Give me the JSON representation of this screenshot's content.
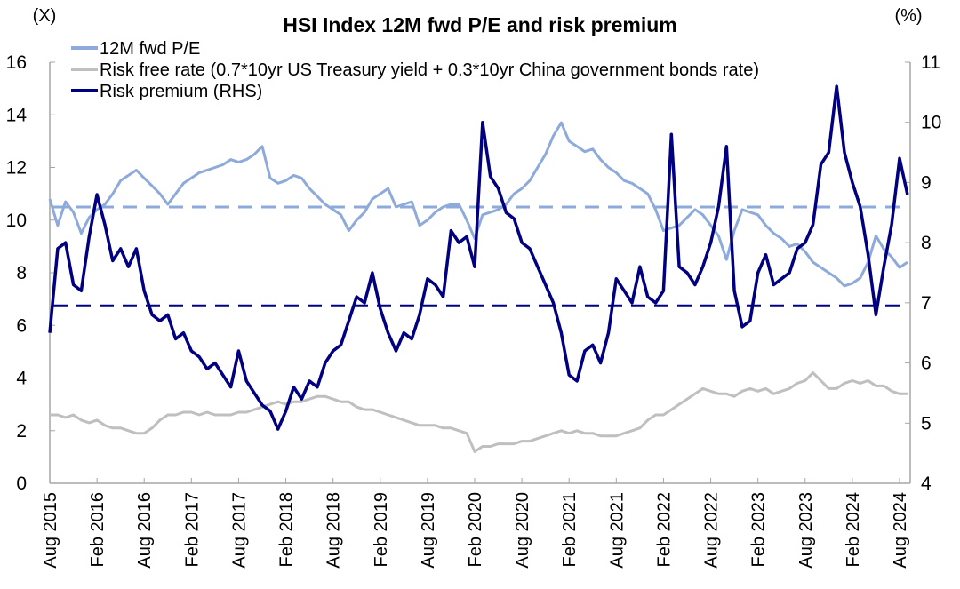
{
  "chart_data": {
    "type": "line",
    "title": "HSI Index 12M fwd P/E and risk premium",
    "left_axis": {
      "unit_label": "(X)",
      "ylim": [
        0,
        16
      ],
      "ticks": [
        0,
        2,
        4,
        6,
        8,
        10,
        12,
        14,
        16
      ]
    },
    "right_axis": {
      "unit_label": "(%)",
      "ylim": [
        4,
        11
      ],
      "ticks": [
        4,
        5,
        6,
        7,
        8,
        9,
        10,
        11
      ]
    },
    "x_tick_labels": [
      "Aug 2015",
      "Feb 2016",
      "Aug 2016",
      "Feb 2017",
      "Aug 2017",
      "Feb 2018",
      "Aug 2018",
      "Feb 2019",
      "Aug 2019",
      "Feb 2020",
      "Aug 2020",
      "Feb 2021",
      "Aug 2021",
      "Feb 2022",
      "Aug 2022",
      "Feb 2023",
      "Aug 2023",
      "Feb 2024",
      "Aug 2024"
    ],
    "x_start": "Aug 2015",
    "x_step": "monthly",
    "grid": false,
    "legend_position": "top-left",
    "series": [
      {
        "name": "12M fwd P/E",
        "axis": "left",
        "color": "#8eaadb",
        "values": [
          10.8,
          9.8,
          10.7,
          10.3,
          9.5,
          10.1,
          10.4,
          10.6,
          11.0,
          11.5,
          11.7,
          11.9,
          11.6,
          11.3,
          11.0,
          10.6,
          11.0,
          11.4,
          11.6,
          11.8,
          11.9,
          12.0,
          12.1,
          12.3,
          12.2,
          12.3,
          12.5,
          12.8,
          11.6,
          11.4,
          11.5,
          11.7,
          11.6,
          11.2,
          10.9,
          10.6,
          10.4,
          10.2,
          9.6,
          10.0,
          10.3,
          10.8,
          11.0,
          11.2,
          10.5,
          10.6,
          10.7,
          9.8,
          10.0,
          10.3,
          10.5,
          10.6,
          10.6,
          10.0,
          9.3,
          10.2,
          10.3,
          10.4,
          10.6,
          11.0,
          11.2,
          11.5,
          12.0,
          12.5,
          13.2,
          13.7,
          13.0,
          12.8,
          12.6,
          12.7,
          12.3,
          12.0,
          11.8,
          11.5,
          11.4,
          11.2,
          11.0,
          10.4,
          9.6,
          9.7,
          9.8,
          10.1,
          10.4,
          10.2,
          9.8,
          9.4,
          8.5,
          9.6,
          10.4,
          10.3,
          10.2,
          9.8,
          9.5,
          9.3,
          9.0,
          9.1,
          8.8,
          8.4,
          8.2,
          8.0,
          7.8,
          7.5,
          7.6,
          7.8,
          8.4,
          9.4,
          8.9,
          8.6,
          8.2,
          8.4
        ]
      },
      {
        "name": "Risk free rate (0.7*10yr US Treasury yield + 0.3*10yr China government bonds rate)",
        "axis": "left",
        "color": "#bfbfbf",
        "values": [
          2.6,
          2.6,
          2.5,
          2.6,
          2.4,
          2.3,
          2.4,
          2.2,
          2.1,
          2.1,
          2.0,
          1.9,
          1.9,
          2.1,
          2.4,
          2.6,
          2.6,
          2.7,
          2.7,
          2.6,
          2.7,
          2.6,
          2.6,
          2.6,
          2.7,
          2.7,
          2.8,
          2.9,
          3.0,
          3.1,
          3.0,
          3.1,
          3.1,
          3.2,
          3.3,
          3.3,
          3.2,
          3.1,
          3.1,
          2.9,
          2.8,
          2.8,
          2.7,
          2.6,
          2.5,
          2.4,
          2.3,
          2.2,
          2.2,
          2.2,
          2.1,
          2.1,
          2.0,
          1.9,
          1.2,
          1.4,
          1.4,
          1.5,
          1.5,
          1.5,
          1.6,
          1.6,
          1.7,
          1.8,
          1.9,
          2.0,
          1.9,
          2.0,
          1.9,
          1.9,
          1.8,
          1.8,
          1.8,
          1.9,
          2.0,
          2.1,
          2.4,
          2.6,
          2.6,
          2.8,
          3.0,
          3.2,
          3.4,
          3.6,
          3.5,
          3.4,
          3.4,
          3.3,
          3.5,
          3.6,
          3.5,
          3.6,
          3.4,
          3.5,
          3.6,
          3.8,
          3.9,
          4.2,
          3.9,
          3.6,
          3.6,
          3.8,
          3.9,
          3.8,
          3.9,
          3.7,
          3.7,
          3.5,
          3.4,
          3.4
        ]
      },
      {
        "name": "Risk premium (RHS)",
        "axis": "right",
        "color": "#000080",
        "values": [
          6.5,
          7.9,
          8.0,
          7.3,
          7.2,
          8.1,
          8.8,
          8.3,
          7.7,
          7.9,
          7.6,
          7.9,
          7.2,
          6.8,
          6.7,
          6.8,
          6.4,
          6.5,
          6.2,
          6.1,
          5.9,
          6.0,
          5.8,
          5.6,
          6.2,
          5.7,
          5.5,
          5.3,
          5.2,
          4.9,
          5.2,
          5.6,
          5.4,
          5.7,
          5.6,
          6.0,
          6.2,
          6.3,
          6.7,
          7.1,
          7.0,
          7.5,
          6.9,
          6.5,
          6.2,
          6.5,
          6.4,
          6.8,
          7.4,
          7.3,
          7.1,
          8.2,
          8.0,
          8.1,
          7.6,
          10.0,
          9.1,
          8.9,
          8.5,
          8.4,
          8.0,
          7.9,
          7.6,
          7.3,
          7.0,
          6.5,
          5.8,
          5.7,
          6.2,
          6.3,
          6.0,
          6.5,
          7.4,
          7.2,
          7.0,
          7.6,
          7.1,
          7.0,
          7.2,
          9.8,
          7.6,
          7.5,
          7.3,
          7.6,
          8.0,
          8.6,
          9.6,
          7.2,
          6.6,
          6.7,
          7.5,
          7.8,
          7.3,
          7.4,
          7.5,
          7.9,
          8.0,
          8.3,
          9.3,
          9.5,
          10.6,
          9.5,
          9.0,
          8.6,
          7.8,
          6.8,
          7.6,
          8.3,
          9.4,
          8.8
        ]
      }
    ],
    "reference_lines": [
      {
        "name": "12M fwd P/E average",
        "axis": "left",
        "value": 10.5,
        "color": "#8eaadb",
        "style": "dashed"
      },
      {
        "name": "Risk premium average",
        "axis": "right",
        "value": 6.95,
        "color": "#000080",
        "style": "dashed"
      }
    ]
  }
}
